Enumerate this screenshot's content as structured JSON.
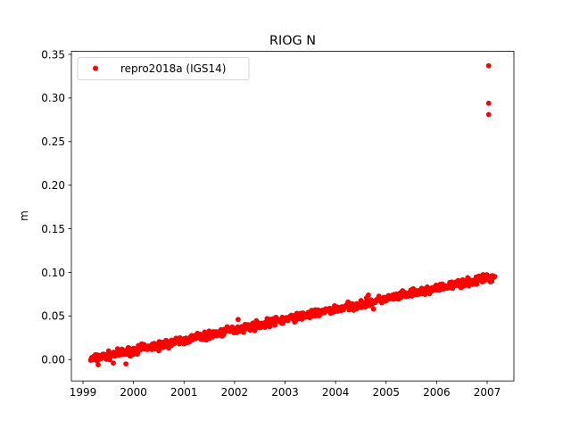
{
  "chart_data": {
    "type": "scatter",
    "title": "RIOG N",
    "xlabel": "",
    "ylabel": "m",
    "xlim": [
      1998.77,
      2007.53
    ],
    "ylim": [
      -0.0245,
      0.3535
    ],
    "xticks": [
      1999,
      2000,
      2001,
      2002,
      2003,
      2004,
      2005,
      2006,
      2007
    ],
    "yticks": [
      0.0,
      0.05,
      0.1,
      0.15,
      0.2,
      0.25,
      0.3,
      0.35
    ],
    "ytick_labels": [
      "0.00",
      "0.05",
      "0.10",
      "0.15",
      "0.20",
      "0.25",
      "0.30",
      "0.35"
    ],
    "grid": false,
    "legend_position": "top-left",
    "series": [
      {
        "name": "repro2018a (IGS14)",
        "color": "#ff0000",
        "marker": "circle",
        "trend": {
          "x_start": 1999.15,
          "x_end": 2007.15,
          "y_start": 0.0005,
          "y_end": 0.095
        },
        "points": [
          {
            "x": 1999.2,
            "y": 0.0
          },
          {
            "x": 1999.3,
            "y": -0.006
          },
          {
            "x": 1999.4,
            "y": 0.004
          },
          {
            "x": 1999.5,
            "y": 0.002
          },
          {
            "x": 1999.6,
            "y": -0.004
          },
          {
            "x": 1999.7,
            "y": 0.008
          },
          {
            "x": 1999.85,
            "y": -0.005
          },
          {
            "x": 2000.0,
            "y": 0.006
          },
          {
            "x": 2000.25,
            "y": 0.012
          },
          {
            "x": 2000.5,
            "y": 0.01
          },
          {
            "x": 2000.75,
            "y": 0.016
          },
          {
            "x": 2001.0,
            "y": 0.018
          },
          {
            "x": 2001.25,
            "y": 0.026
          },
          {
            "x": 2001.5,
            "y": 0.024
          },
          {
            "x": 2001.75,
            "y": 0.027
          },
          {
            "x": 2002.0,
            "y": 0.034
          },
          {
            "x": 2002.07,
            "y": 0.046
          },
          {
            "x": 2002.3,
            "y": 0.039
          },
          {
            "x": 2002.6,
            "y": 0.037
          },
          {
            "x": 2003.0,
            "y": 0.046
          },
          {
            "x": 2003.3,
            "y": 0.048
          },
          {
            "x": 2003.6,
            "y": 0.05
          },
          {
            "x": 2004.0,
            "y": 0.058
          },
          {
            "x": 2004.3,
            "y": 0.061
          },
          {
            "x": 2004.5,
            "y": 0.063
          },
          {
            "x": 2004.65,
            "y": 0.074
          },
          {
            "x": 2004.75,
            "y": 0.058
          },
          {
            "x": 2005.0,
            "y": 0.069
          },
          {
            "x": 2005.3,
            "y": 0.073
          },
          {
            "x": 2005.6,
            "y": 0.076
          },
          {
            "x": 2006.0,
            "y": 0.083
          },
          {
            "x": 2006.3,
            "y": 0.087
          },
          {
            "x": 2006.6,
            "y": 0.088
          },
          {
            "x": 2006.9,
            "y": 0.093
          },
          {
            "x": 2007.1,
            "y": 0.096
          },
          {
            "x": 2007.03,
            "y": 0.337
          },
          {
            "x": 2007.03,
            "y": 0.294
          },
          {
            "x": 2007.03,
            "y": 0.281
          }
        ]
      }
    ]
  }
}
